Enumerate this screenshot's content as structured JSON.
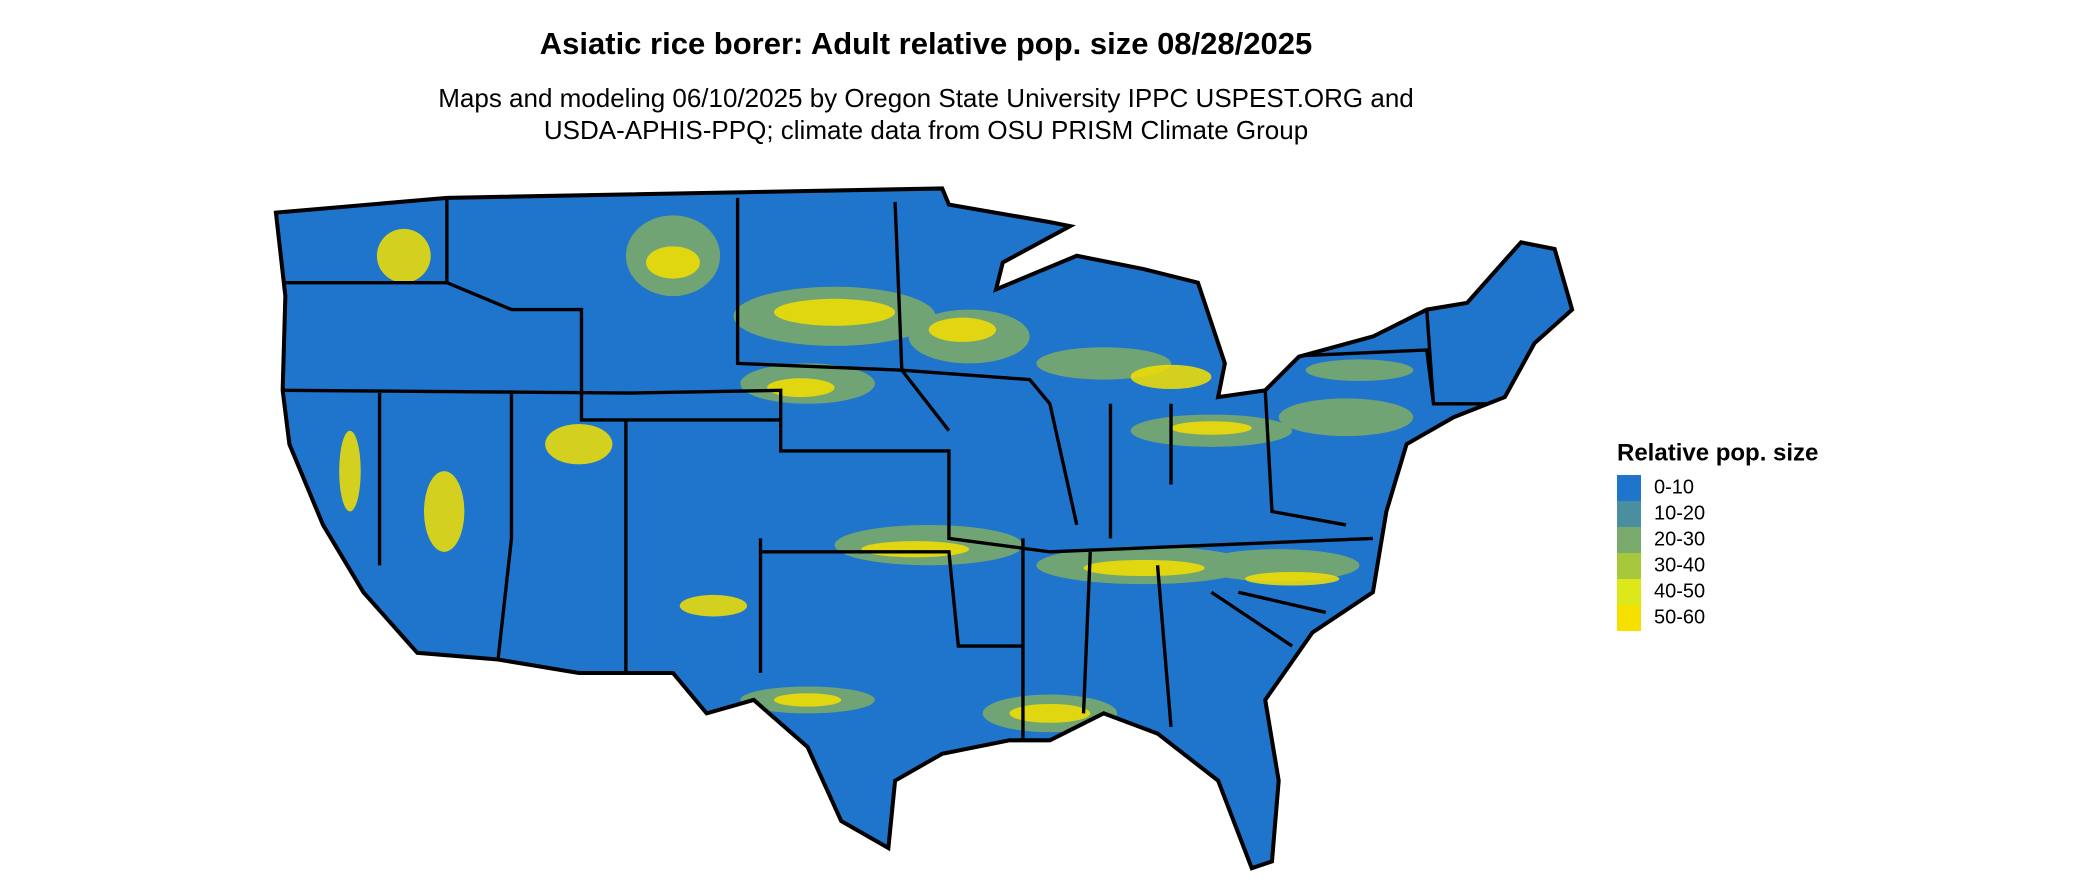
{
  "title": "Asiatic rice borer: Adult relative pop. size 08/28/2025",
  "subtitle": [
    "Maps and modeling 06/10/2025 by Oregon State University IPPC USPEST.ORG and",
    "USDA-APHIS-PPQ; climate data from OSU PRISM Climate Group"
  ],
  "legend": {
    "title": "Relative pop. size",
    "items": [
      {
        "label": "0-10",
        "color": "#1f74cc"
      },
      {
        "label": "10-20",
        "color": "#4a8fa0"
      },
      {
        "label": "20-30",
        "color": "#7aaa6c"
      },
      {
        "label": "30-40",
        "color": "#a8c83c"
      },
      {
        "label": "40-50",
        "color": "#dde81a"
      },
      {
        "label": "50-60",
        "color": "#f5e000"
      }
    ]
  }
}
